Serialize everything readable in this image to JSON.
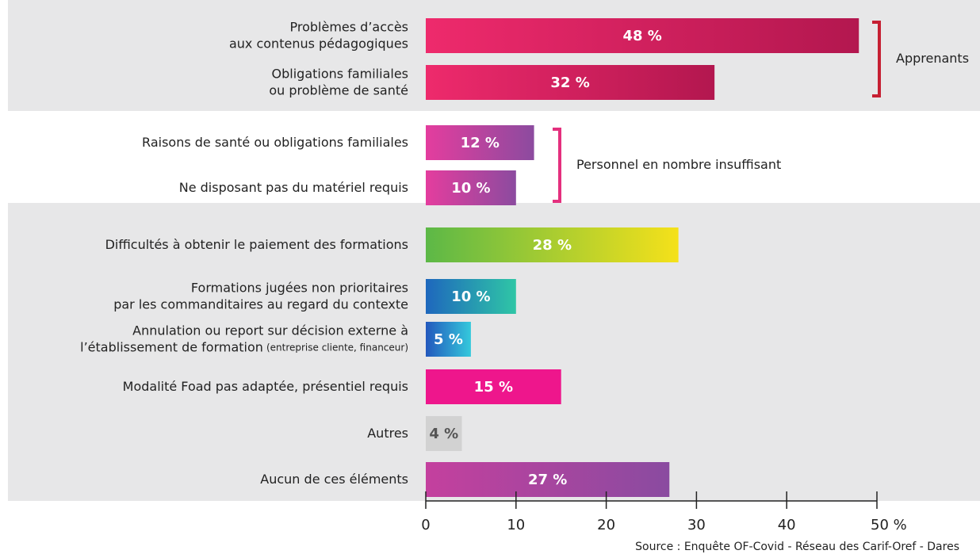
{
  "chart_data": {
    "type": "bar",
    "orientation": "horizontal",
    "categories": [
      [
        "Problèmes d’accès",
        "aux contenus pédagogiques"
      ],
      [
        "Obligations familiales",
        "ou problème de santé"
      ],
      [
        "Raisons de santé ou obligations familiales"
      ],
      [
        "Ne disposant pas du matériel requis"
      ],
      [
        "Difficultés à obtenir le paiement des formations"
      ],
      [
        "Formations jugées non prioritaires",
        "par les commanditaires au regard du contexte"
      ],
      [
        "Annulation ou report sur décision externe à",
        "l’établissement de formation"
      ],
      [
        "Modalité Foad pas adaptée, présentiel requis"
      ],
      [
        "Autres"
      ],
      [
        "Aucun de ces éléments"
      ]
    ],
    "notes": [
      null,
      null,
      null,
      null,
      null,
      null,
      "(entreprise cliente, financeur)",
      null,
      null,
      null
    ],
    "values": [
      48,
      32,
      12,
      10,
      28,
      10,
      5,
      15,
      4,
      27
    ],
    "value_labels": [
      "48 %",
      "32 %",
      "12 %",
      "10 %",
      "28 %",
      "10 %",
      "5 %",
      "15 %",
      "4 %",
      "27 %"
    ],
    "colors": [
      [
        "#ee2a6c",
        "#b3174f"
      ],
      [
        "#ee2a6c",
        "#b3174f"
      ],
      [
        "#e43d9e",
        "#8c4b9f"
      ],
      [
        "#e43d9e",
        "#8c4b9f"
      ],
      [
        "#5cb847",
        "#f5e11a"
      ],
      [
        "#1e67bd",
        "#2fc6a6"
      ],
      [
        "#2358bd",
        "#34c9dc"
      ],
      [
        "#ee168c",
        "#ee168c"
      ],
      [
        "#d2d2d2",
        "#d2d2d2"
      ],
      [
        "#c4409e",
        "#8a4ba0"
      ]
    ],
    "label_colors": [
      "#ffffff",
      "#ffffff",
      "#ffffff",
      "#ffffff",
      "#ffffff",
      "#ffffff",
      "#ffffff",
      "#ffffff",
      "#555555",
      "#ffffff"
    ],
    "groups": [
      {
        "label": "Apprenants",
        "rows": [
          0,
          1
        ],
        "color": "#c61f32"
      },
      {
        "label": "Personnel en nombre insuffisant",
        "rows": [
          2,
          3
        ],
        "color": "#e4307e"
      }
    ],
    "xlim": [
      0,
      50
    ],
    "xticks": [
      0,
      10,
      20,
      30,
      40,
      {
        "value": 50,
        "label": "50 %"
      }
    ],
    "source": "Source : Enquête OF-Covid - Réseau des Carif-Oref - Dares"
  }
}
